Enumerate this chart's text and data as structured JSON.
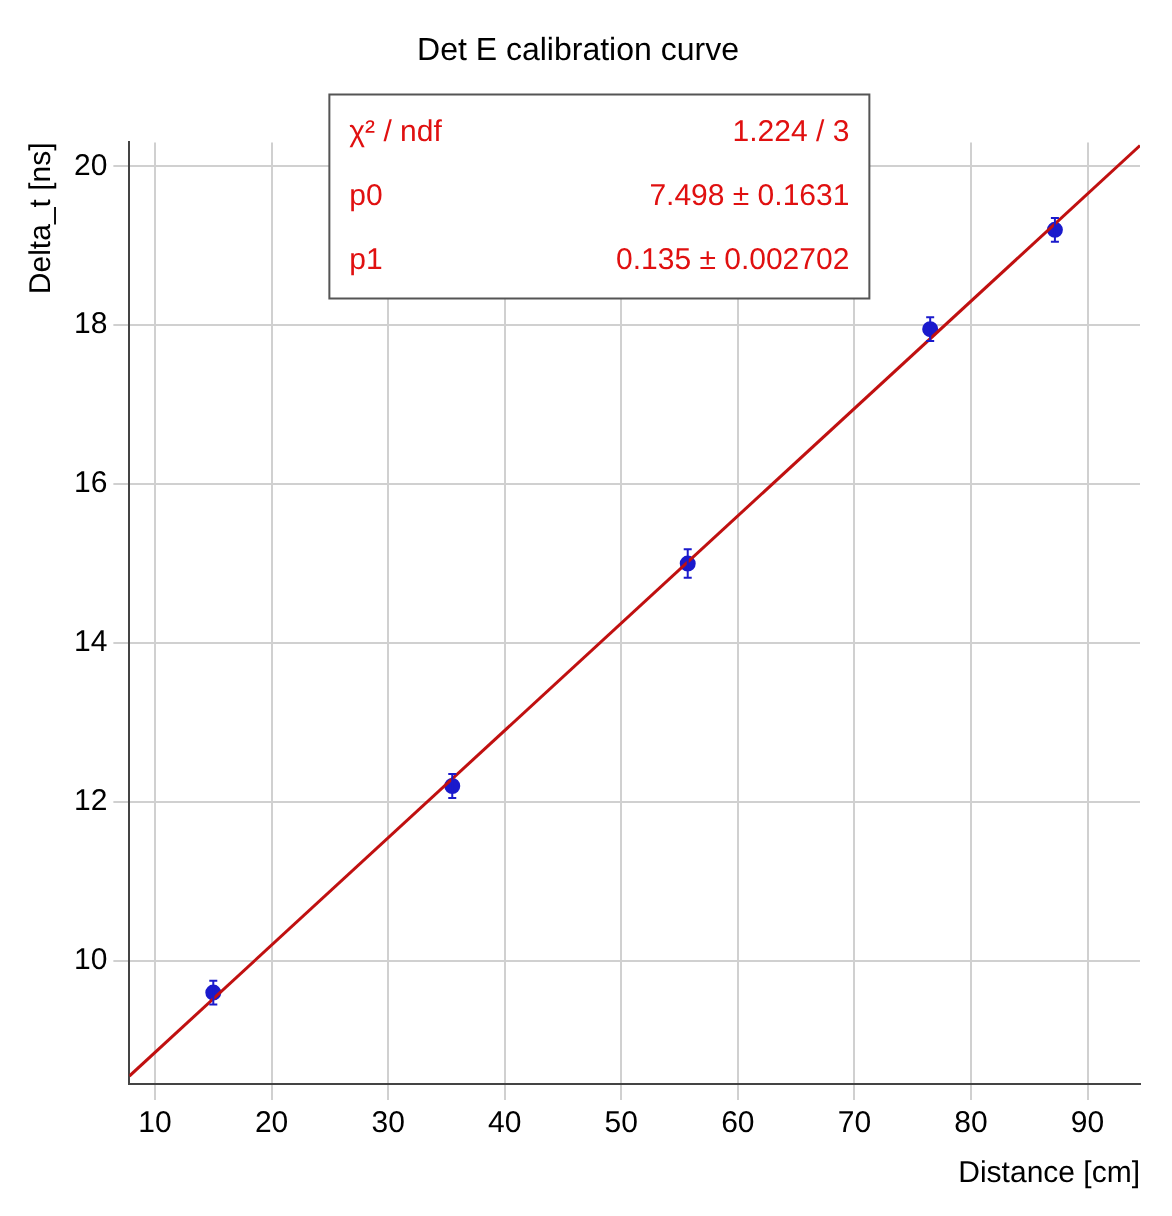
{
  "chart_data": {
    "type": "scatter",
    "title": "Det E calibration curve",
    "xlabel": "Distance [cm]",
    "ylabel": "Delta_t [ns]",
    "series": [
      {
        "marker": "circle",
        "color": "#1a1acc",
        "x": [
          15,
          35.5,
          55.7,
          76.5,
          87.2
        ],
        "values": [
          9.6,
          12.2,
          15.0,
          17.95,
          19.2
        ],
        "errors": [
          0.15,
          0.15,
          0.18,
          0.15,
          0.15
        ]
      },
      {
        "type": "line",
        "marker": "none",
        "color": "#c01010",
        "x": [
          7.8,
          94.5
        ],
        "values": [
          8.55,
          20.26
        ]
      }
    ],
    "xlim": [
      7.8,
      94.5
    ],
    "xticks": [
      10,
      20,
      30,
      40,
      50,
      60,
      70,
      80,
      90
    ],
    "ylim": [
      8.45,
      20.3
    ],
    "yticks": [
      10,
      12,
      14,
      16,
      18,
      20
    ],
    "grid": true,
    "legend": false,
    "annotations": [
      "χ² / ndf",
      "1.224 / 3",
      "p0",
      "7.498 ± 0.1631",
      "p1",
      "0.135 ± 0.002702"
    ]
  }
}
